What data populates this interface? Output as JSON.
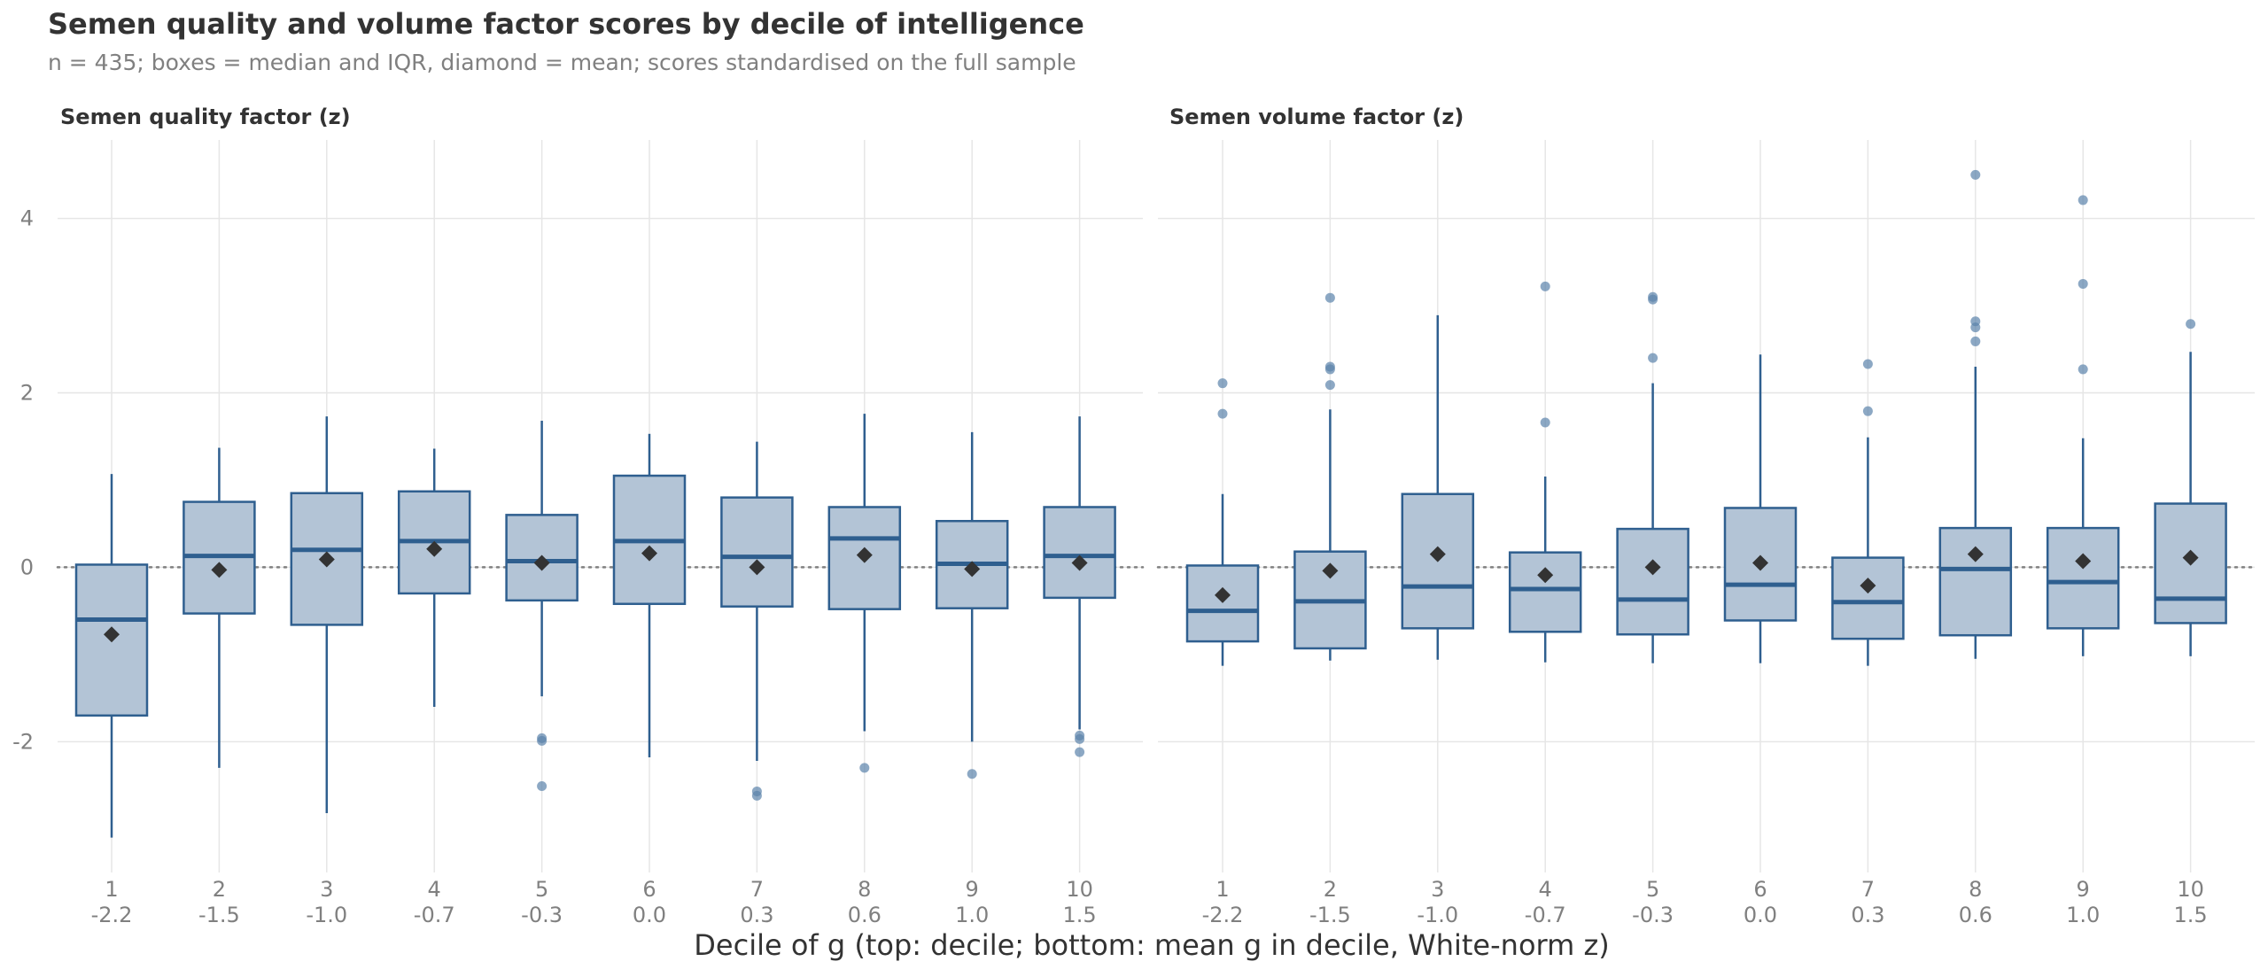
{
  "chart_data": {
    "type": "box",
    "title": "Semen quality and volume factor scores by decile of intelligence",
    "subtitle": "n = 435; boxes = median and IQR, diamond = mean; scores standardised on the full sample",
    "xlabel": "Decile of g (top: decile; bottom: mean g in decile, White-norm z)",
    "categories": [
      "1",
      "2",
      "3",
      "4",
      "5",
      "6",
      "7",
      "8",
      "9",
      "10"
    ],
    "category_sublabels": [
      "-2.2",
      "-1.5",
      "-1.0",
      "-0.7",
      "-0.3",
      "0.0",
      "0.3",
      "0.6",
      "1.0",
      "1.5"
    ],
    "ylim": [
      -3.5,
      4.9
    ],
    "yticks": [
      -2,
      0,
      2,
      4
    ],
    "reference_line": 0,
    "grid": true,
    "colors": {
      "box_fill": "#b3c4d6",
      "box_stroke": "#2f5f8f",
      "mean_marker": "#333333",
      "outlier": "#5b83ab",
      "grid": "#e6e6e6",
      "reference": "#808080"
    },
    "facets": [
      {
        "name": "Semen quality factor (z)",
        "boxes": [
          {
            "q1": -1.7,
            "median": -0.6,
            "q3": 0.03,
            "whisker_low": -3.1,
            "whisker_high": 1.07,
            "mean": -0.77,
            "outliers": []
          },
          {
            "q1": -0.53,
            "median": 0.13,
            "q3": 0.75,
            "whisker_low": -2.3,
            "whisker_high": 1.37,
            "mean": -0.03,
            "outliers": []
          },
          {
            "q1": -0.66,
            "median": 0.2,
            "q3": 0.85,
            "whisker_low": -2.82,
            "whisker_high": 1.73,
            "mean": 0.09,
            "outliers": []
          },
          {
            "q1": -0.3,
            "median": 0.3,
            "q3": 0.87,
            "whisker_low": -1.6,
            "whisker_high": 1.36,
            "mean": 0.21,
            "outliers": []
          },
          {
            "q1": -0.38,
            "median": 0.07,
            "q3": 0.6,
            "whisker_low": -1.48,
            "whisker_high": 1.68,
            "mean": 0.05,
            "outliers": [
              -1.96,
              -1.99,
              -2.51
            ]
          },
          {
            "q1": -0.42,
            "median": 0.3,
            "q3": 1.05,
            "whisker_low": -2.18,
            "whisker_high": 1.53,
            "mean": 0.16,
            "outliers": []
          },
          {
            "q1": -0.45,
            "median": 0.12,
            "q3": 0.8,
            "whisker_low": -2.22,
            "whisker_high": 1.44,
            "mean": 0.0,
            "outliers": [
              -2.57,
              -2.62
            ]
          },
          {
            "q1": -0.48,
            "median": 0.33,
            "q3": 0.69,
            "whisker_low": -1.88,
            "whisker_high": 1.76,
            "mean": 0.14,
            "outliers": [
              -2.3
            ]
          },
          {
            "q1": -0.47,
            "median": 0.04,
            "q3": 0.53,
            "whisker_low": -2.0,
            "whisker_high": 1.55,
            "mean": -0.02,
            "outliers": [
              -2.37
            ]
          },
          {
            "q1": -0.35,
            "median": 0.13,
            "q3": 0.69,
            "whisker_low": -1.86,
            "whisker_high": 1.73,
            "mean": 0.05,
            "outliers": [
              -1.93,
              -1.97,
              -2.12
            ]
          }
        ]
      },
      {
        "name": "Semen volume factor (z)",
        "boxes": [
          {
            "q1": -0.85,
            "median": -0.5,
            "q3": 0.02,
            "whisker_low": -1.13,
            "whisker_high": 0.84,
            "mean": -0.32,
            "outliers": [
              1.76,
              2.11
            ]
          },
          {
            "q1": -0.93,
            "median": -0.39,
            "q3": 0.18,
            "whisker_low": -1.07,
            "whisker_high": 1.81,
            "mean": -0.04,
            "outliers": [
              2.09,
              2.27,
              2.3,
              3.09
            ]
          },
          {
            "q1": -0.7,
            "median": -0.22,
            "q3": 0.84,
            "whisker_low": -1.06,
            "whisker_high": 2.89,
            "mean": 0.15,
            "outliers": []
          },
          {
            "q1": -0.74,
            "median": -0.25,
            "q3": 0.17,
            "whisker_low": -1.09,
            "whisker_high": 1.04,
            "mean": -0.09,
            "outliers": [
              1.66,
              3.22
            ]
          },
          {
            "q1": -0.77,
            "median": -0.37,
            "q3": 0.44,
            "whisker_low": -1.1,
            "whisker_high": 2.11,
            "mean": 0.0,
            "outliers": [
              2.4,
              3.07,
              3.1
            ]
          },
          {
            "q1": -0.61,
            "median": -0.2,
            "q3": 0.68,
            "whisker_low": -1.1,
            "whisker_high": 2.44,
            "mean": 0.05,
            "outliers": []
          },
          {
            "q1": -0.82,
            "median": -0.4,
            "q3": 0.11,
            "whisker_low": -1.13,
            "whisker_high": 1.49,
            "mean": -0.21,
            "outliers": [
              1.79,
              2.33
            ]
          },
          {
            "q1": -0.78,
            "median": -0.02,
            "q3": 0.45,
            "whisker_low": -1.05,
            "whisker_high": 2.3,
            "mean": 0.15,
            "outliers": [
              2.59,
              2.75,
              2.82,
              4.5
            ]
          },
          {
            "q1": -0.7,
            "median": -0.17,
            "q3": 0.45,
            "whisker_low": -1.02,
            "whisker_high": 1.48,
            "mean": 0.07,
            "outliers": [
              2.27,
              3.25,
              4.21
            ]
          },
          {
            "q1": -0.64,
            "median": -0.36,
            "q3": 0.73,
            "whisker_low": -1.02,
            "whisker_high": 2.47,
            "mean": 0.11,
            "outliers": [
              2.79
            ]
          }
        ]
      }
    ]
  }
}
